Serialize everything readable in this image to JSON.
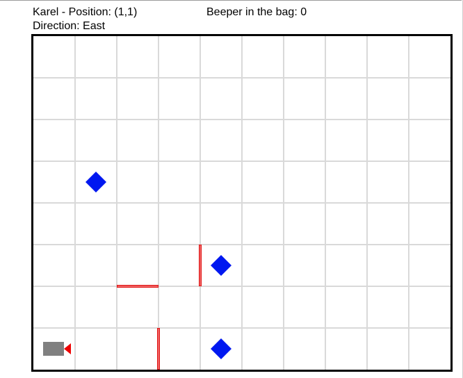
{
  "status": {
    "position_label": "Karel - Position: (1,1)",
    "direction_label": "Direction: East",
    "beeper_bag_label": "Beeper in the bag: 0"
  },
  "world": {
    "columns": 10,
    "rows": 8,
    "karel": {
      "street": 1,
      "avenue": 1,
      "direction": "East"
    },
    "beepers": [
      {
        "avenue": 2,
        "street": 5
      },
      {
        "avenue": 5,
        "street": 3
      },
      {
        "avenue": 5,
        "street": 1
      }
    ],
    "walls": [
      {
        "type": "vertical",
        "between_avenues": [
          3,
          4
        ],
        "street": 1
      },
      {
        "type": "vertical",
        "between_avenues": [
          4,
          5
        ],
        "street": 3
      },
      {
        "type": "horizontal",
        "avenue": 3,
        "between_streets": [
          2,
          3
        ]
      }
    ]
  },
  "colors": {
    "grid": "#d9d9d9",
    "border": "#000000",
    "beeper": "#0018f0",
    "wall": "#e01515",
    "karel_body": "#808080",
    "karel_pointer": "#ee0000"
  },
  "icons": {
    "beeper": "diamond",
    "karel": "robot-with-direction-arrow"
  }
}
